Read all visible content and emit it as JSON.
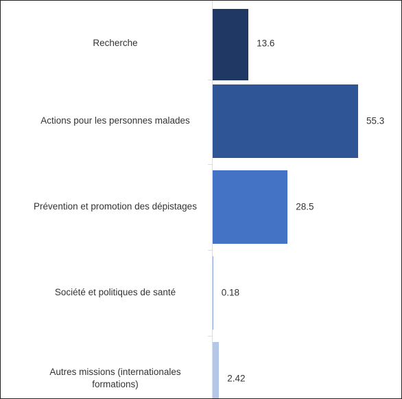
{
  "chart_data": {
    "type": "bar",
    "orientation": "horizontal",
    "categories": [
      "Recherche",
      "Actions pour les personnes malades",
      "Prévention et promotion des dépistages",
      "Société et politiques de santé",
      "Autres missions (internationales formations)"
    ],
    "values": [
      13.6,
      55.3,
      28.5,
      0.18,
      2.42
    ],
    "colors": [
      "#1f3864",
      "#2f5597",
      "#4472c4",
      "#8faadc",
      "#b4c7e7"
    ]
  }
}
